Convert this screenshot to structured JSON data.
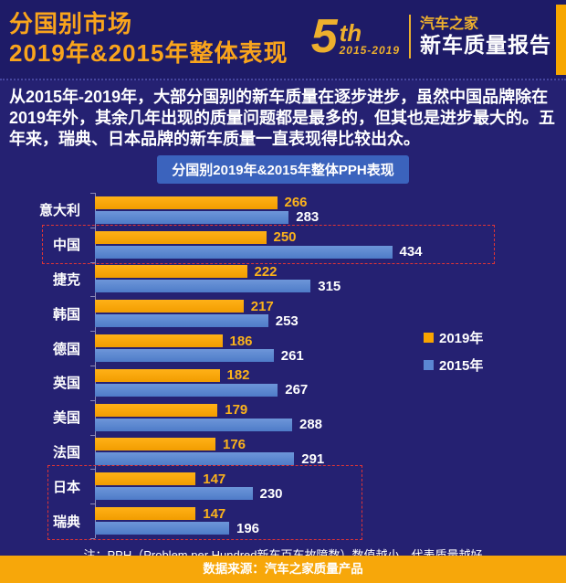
{
  "header": {
    "title_line1": "分国别市场",
    "title_line2": "2019年&2015年整体表现",
    "logo": {
      "big_number": "5",
      "suffix": "th",
      "years": "2015-2019",
      "brand": "汽车之家",
      "report": "新车质量报告"
    }
  },
  "intro": "从2015年-2019年，大部分国别的新车质量在逐步进步，虽然中国品牌除在2019年外，其余几年出现的质量问题都是最多的，但其也是进步最大的。五年来，瑞典、日本品牌的新车质量一直表现得比较出众。",
  "chart": {
    "title": "分国别2019年&2015年整体PPH表现"
  },
  "chart_data": {
    "type": "bar",
    "orientation": "horizontal",
    "title": "分国别2019年&2015年整体PPH表现",
    "categories": [
      "意大利",
      "中国",
      "捷克",
      "韩国",
      "德国",
      "英国",
      "美国",
      "法国",
      "日本",
      "瑞典"
    ],
    "series": [
      {
        "name": "2019年",
        "color": "#f9a400",
        "values": [
          266,
          250,
          222,
          217,
          186,
          182,
          179,
          176,
          147,
          147
        ]
      },
      {
        "name": "2015年",
        "color": "#5b87d3",
        "values": [
          283,
          434,
          315,
          253,
          261,
          267,
          288,
          291,
          230,
          196
        ]
      }
    ],
    "xlim": [
      0,
      600
    ],
    "grid": false,
    "legend_position": "right-middle",
    "highlighted_categories": [
      "中国",
      "日本",
      "瑞典"
    ],
    "note": "注：PPH（Problem per Hundred新车百车故障数）数值越小，代表质量越好"
  },
  "note": "注：PPH（Problem per Hundred新车百车故障数）数值越小，代表质量越好",
  "footer": "数据来源：汽车之家质量产品",
  "colors": {
    "background": "#252172",
    "header_background": "#1e1b67",
    "accent_orange": "#f9a400",
    "accent_blue": "#5b87d3",
    "title_orange": "#f9a41c",
    "badge_blue": "#3b63bd",
    "highlight_red": "#e03535",
    "footer_orange": "#f7a70a"
  }
}
